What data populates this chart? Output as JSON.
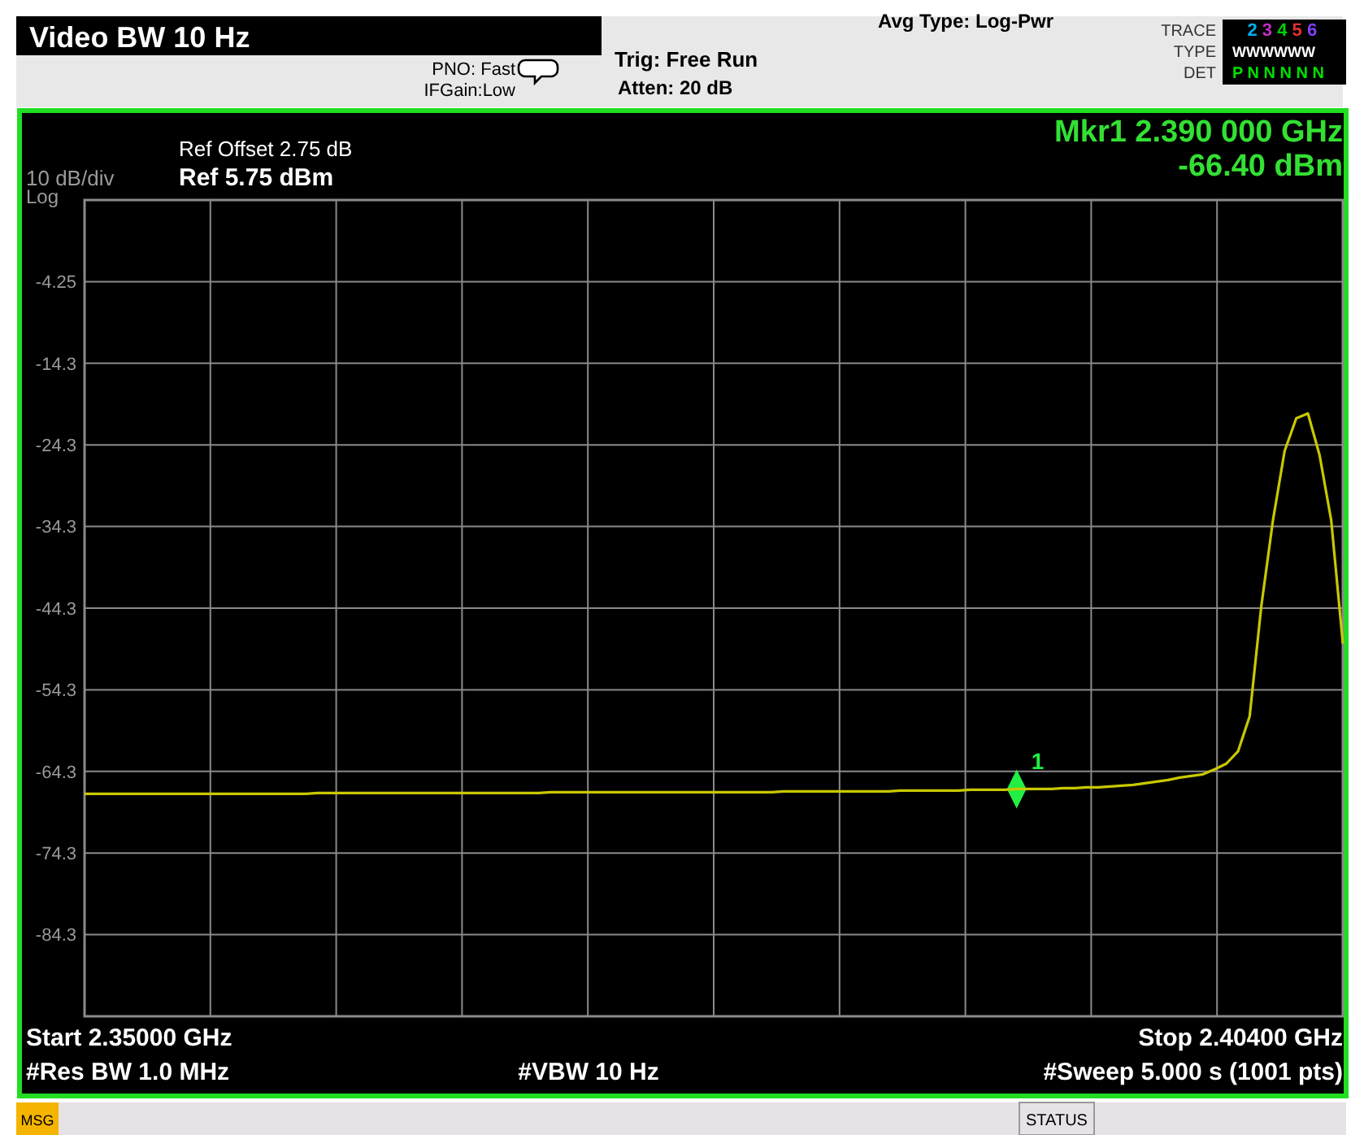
{
  "chart_data": {
    "type": "line",
    "title": "Video BW 10 Hz",
    "categories": [
      null,
      null,
      null,
      null,
      null,
      null,
      null,
      null,
      null,
      null,
      null,
      null,
      null,
      null,
      null,
      null,
      null,
      null,
      null,
      null,
      null,
      null,
      null,
      null,
      null,
      null,
      null,
      null,
      null,
      null,
      null,
      null,
      null,
      null,
      null,
      null,
      null,
      null,
      null,
      null,
      null,
      null,
      null,
      null,
      null,
      null,
      null,
      null,
      null,
      null,
      null,
      null,
      null,
      null,
      null,
      null,
      null,
      null,
      null,
      null,
      null,
      null,
      null,
      null,
      null,
      null,
      null,
      null,
      null,
      null,
      null,
      null,
      null,
      null,
      null,
      null,
      null,
      null,
      null,
      null,
      null,
      null,
      null,
      null,
      null,
      null,
      null,
      null,
      null,
      null,
      null,
      null,
      null,
      null,
      null,
      null,
      null,
      null,
      null,
      null,
      null,
      null,
      null,
      null,
      null,
      null,
      null,
      null,
      null
    ],
    "ylim": [
      -94.25,
      5.75
    ],
    "yticks": [
      {
        "value": -4.25,
        "label": "-4.25"
      },
      {
        "value": -14.25,
        "label": "-14.3"
      },
      {
        "value": -24.25,
        "label": "-24.3"
      },
      {
        "value": -34.25,
        "label": "-34.3"
      },
      {
        "value": -44.25,
        "label": "-44.3"
      },
      {
        "value": -54.25,
        "label": "-54.3"
      },
      {
        "value": -64.25,
        "label": "-64.3"
      },
      {
        "value": -74.25,
        "label": "-74.3"
      },
      {
        "value": -84.25,
        "label": "-84.3"
      }
    ],
    "tick_labels": "y",
    "grid": true,
    "line_style": "solid",
    "series": [
      {
        "color": "#c8c800",
        "marker": "none",
        "values": [
          -67.0,
          -67.0,
          -67.0,
          -67.0,
          -67.0,
          -67.0,
          -67.0,
          -67.0,
          -67.0,
          -67.0,
          -67.0,
          -67.0,
          -67.0,
          -67.0,
          -67.0,
          -67.0,
          -67.0,
          -67.0,
          -67.0,
          -67.0,
          -66.9,
          -66.9,
          -66.9,
          -66.9,
          -66.9,
          -66.9,
          -66.9,
          -66.9,
          -66.9,
          -66.9,
          -66.9,
          -66.9,
          -66.9,
          -66.9,
          -66.9,
          -66.9,
          -66.9,
          -66.9,
          -66.9,
          -66.9,
          -66.8,
          -66.8,
          -66.8,
          -66.8,
          -66.8,
          -66.8,
          -66.8,
          -66.8,
          -66.8,
          -66.8,
          -66.8,
          -66.8,
          -66.8,
          -66.8,
          -66.8,
          -66.8,
          -66.8,
          -66.8,
          -66.8,
          -66.8,
          -66.7,
          -66.7,
          -66.7,
          -66.7,
          -66.7,
          -66.7,
          -66.7,
          -66.7,
          -66.7,
          -66.7,
          -66.6,
          -66.6,
          -66.6,
          -66.6,
          -66.6,
          -66.6,
          -66.5,
          -66.5,
          -66.5,
          -66.5,
          -66.4,
          -66.4,
          -66.4,
          -66.4,
          -66.3,
          -66.3,
          -66.2,
          -66.2,
          -66.1,
          -66.0,
          -65.9,
          -65.7,
          -65.5,
          -65.3,
          -65.0,
          -64.8,
          -64.6,
          -64.0,
          -63.3,
          -61.8,
          -57.5,
          -44.0,
          -33.5,
          -25.0,
          -21.0,
          -20.4,
          -25.5,
          -33.5,
          -48.6
        ]
      },
      {
        "type": "scatter",
        "name": "1",
        "color": "#22ee44",
        "marker": "diamond",
        "values": [
          null,
          null,
          null,
          null,
          null,
          null,
          null,
          null,
          null,
          null,
          null,
          null,
          null,
          null,
          null,
          null,
          null,
          null,
          null,
          null,
          null,
          null,
          null,
          null,
          null,
          null,
          null,
          null,
          null,
          null,
          null,
          null,
          null,
          null,
          null,
          null,
          null,
          null,
          null,
          null,
          null,
          null,
          null,
          null,
          null,
          null,
          null,
          null,
          null,
          null,
          null,
          null,
          null,
          null,
          null,
          null,
          null,
          null,
          null,
          null,
          null,
          null,
          null,
          null,
          null,
          null,
          null,
          null,
          null,
          null,
          null,
          null,
          null,
          null,
          null,
          null,
          null,
          null,
          null,
          null,
          -66.4,
          null,
          null,
          null,
          null,
          null,
          null,
          null,
          null,
          null,
          null,
          null,
          null,
          null,
          null,
          null,
          null,
          null,
          null,
          null,
          null,
          null,
          null,
          null,
          null,
          null,
          null,
          null,
          null
        ]
      }
    ],
    "annotations": [
      "PNO: Fast",
      "IFGain:Low",
      "Trig: Free Run",
      "Atten: 20 dB",
      "Avg Type: Log-Pwr",
      "TRACE",
      "TYPE",
      "DET",
      "1 2 3 4 5 6",
      "WWWWWW",
      "P N N N N N",
      "Ref Offset 2.75 dB",
      "Ref 5.75 dBm",
      "10 dB/div",
      "Log",
      "Mkr1 2.390 000 GHz",
      "-66.40 dBm",
      "Start 2.35000 GHz",
      "Stop 2.40400 GHz",
      "#Res BW 1.0 MHz",
      "#VBW 10 Hz",
      "#Sweep  5.000 s (1001 pts)",
      "MSG",
      "STATUS"
    ]
  }
}
